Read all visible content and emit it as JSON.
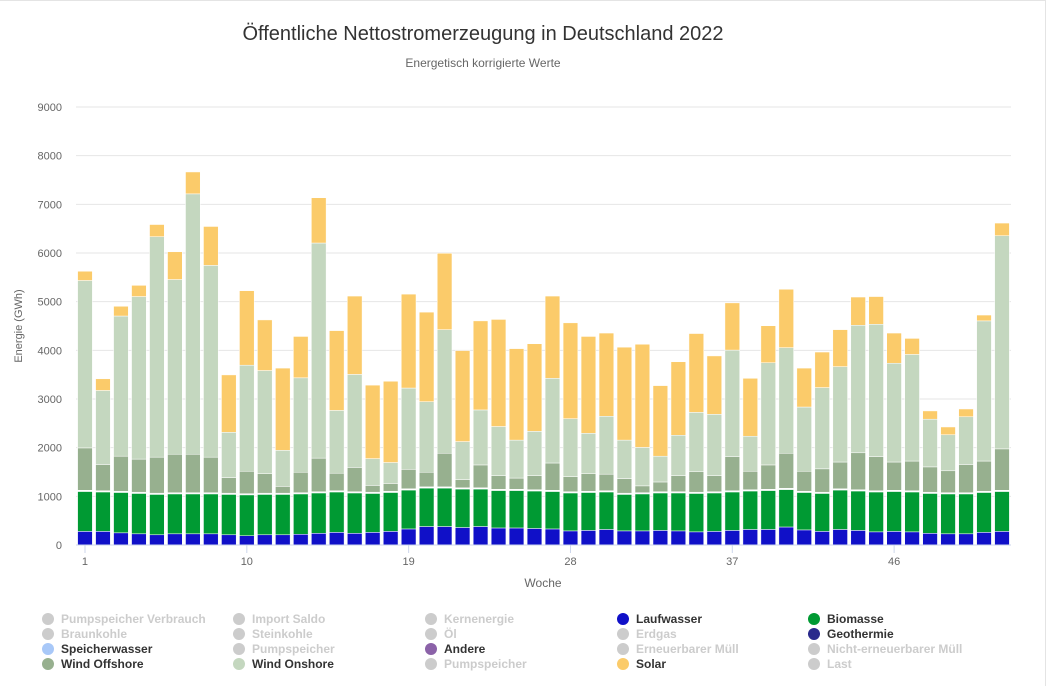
{
  "chart_data": {
    "type": "bar",
    "stacked": true,
    "title": "Öffentliche Nettostromerzeugung in Deutschland 2022",
    "subtitle": "Energetisch korrigierte Werte",
    "xlabel": "Woche",
    "ylabel": "Energie (GWh)",
    "ylim": [
      0,
      9000
    ],
    "yticks": [
      "0",
      "1000",
      "2000",
      "3000",
      "4000",
      "5000",
      "6000",
      "7000",
      "8000",
      "9000"
    ],
    "xtick_labels": [
      {
        "week": 1,
        "label": "1"
      },
      {
        "week": 10,
        "label": "10"
      },
      {
        "week": 19,
        "label": "19"
      },
      {
        "week": 28,
        "label": "28"
      },
      {
        "week": 37,
        "label": "37"
      },
      {
        "week": 46,
        "label": "46"
      }
    ],
    "weeks": [
      1,
      2,
      3,
      4,
      5,
      6,
      7,
      8,
      9,
      10,
      11,
      12,
      13,
      14,
      15,
      16,
      17,
      18,
      19,
      20,
      21,
      22,
      23,
      24,
      25,
      26,
      27,
      28,
      29,
      30,
      31,
      32,
      33,
      34,
      35,
      36,
      37,
      38,
      39,
      40,
      41,
      42,
      43,
      44,
      45,
      46,
      47,
      48,
      49,
      50,
      51,
      52
    ],
    "series": [
      {
        "name": "Laufwasser",
        "color": "#1010c8",
        "values": [
          280,
          280,
          250,
          230,
          210,
          230,
          230,
          230,
          210,
          190,
          210,
          210,
          220,
          240,
          260,
          240,
          260,
          280,
          330,
          380,
          380,
          360,
          380,
          350,
          350,
          340,
          330,
          290,
          300,
          320,
          290,
          290,
          300,
          290,
          270,
          280,
          300,
          320,
          320,
          370,
          310,
          280,
          320,
          300,
          270,
          280,
          270,
          240,
          230,
          230,
          260,
          280
        ]
      },
      {
        "name": "Biomasse",
        "color": "#009a33",
        "values": [
          820,
          810,
          830,
          830,
          830,
          820,
          820,
          820,
          830,
          840,
          830,
          830,
          830,
          830,
          830,
          830,
          800,
          800,
          800,
          790,
          790,
          790,
          770,
          770,
          770,
          770,
          770,
          780,
          780,
          770,
          750,
          760,
          770,
          780,
          790,
          790,
          790,
          790,
          800,
          770,
          770,
          780,
          810,
          810,
          820,
          820,
          820,
          820,
          820,
          820,
          820,
          820
        ]
      },
      {
        "name": "Geothermie",
        "color": "#2a2a8c",
        "values": [
          5,
          5,
          5,
          5,
          5,
          5,
          5,
          5,
          5,
          5,
          5,
          5,
          5,
          5,
          5,
          5,
          5,
          5,
          5,
          5,
          5,
          5,
          5,
          5,
          5,
          5,
          5,
          5,
          5,
          5,
          5,
          5,
          5,
          5,
          5,
          5,
          5,
          5,
          5,
          5,
          5,
          5,
          5,
          5,
          5,
          5,
          5,
          5,
          5,
          5,
          5,
          5
        ]
      },
      {
        "name": "Speicherwasser",
        "color": "#a8c8f8",
        "values": [
          10,
          10,
          10,
          10,
          10,
          10,
          10,
          10,
          10,
          10,
          10,
          10,
          10,
          10,
          10,
          10,
          10,
          10,
          10,
          10,
          10,
          10,
          10,
          10,
          10,
          10,
          10,
          10,
          10,
          10,
          10,
          10,
          10,
          10,
          10,
          10,
          10,
          10,
          10,
          10,
          10,
          10,
          10,
          10,
          10,
          10,
          10,
          10,
          10,
          10,
          10,
          10
        ]
      },
      {
        "name": "Andere",
        "color": "#8b62a8",
        "values": [
          10,
          10,
          10,
          10,
          10,
          10,
          10,
          10,
          10,
          10,
          10,
          10,
          10,
          10,
          10,
          10,
          10,
          10,
          10,
          10,
          10,
          10,
          10,
          10,
          10,
          10,
          10,
          10,
          10,
          10,
          10,
          10,
          10,
          10,
          10,
          10,
          10,
          10,
          10,
          10,
          10,
          10,
          10,
          10,
          10,
          10,
          10,
          10,
          10,
          10,
          10,
          10
        ]
      },
      {
        "name": "Wind Offshore",
        "color": "#97b08f",
        "values": [
          870,
          540,
          720,
          680,
          740,
          790,
          790,
          730,
          320,
          460,
          400,
          140,
          420,
          690,
          360,
          500,
          140,
          160,
          400,
          300,
          690,
          170,
          470,
          280,
          230,
          290,
          560,
          310,
          360,
          340,
          300,
          140,
          200,
          330,
          420,
          330,
          700,
          380,
          500,
          720,
          410,
          480,
          550,
          760,
          700,
          580,
          610,
          520,
          450,
          580,
          620,
          850
        ]
      },
      {
        "name": "Wind Onshore",
        "color": "#c4d7bf",
        "values": [
          3440,
          1520,
          2880,
          3340,
          4530,
          3590,
          5350,
          3940,
          930,
          2180,
          2120,
          740,
          1940,
          4420,
          1290,
          1910,
          550,
          430,
          1670,
          1450,
          2540,
          780,
          1130,
          1010,
          780,
          910,
          1740,
          1190,
          830,
          1190,
          790,
          790,
          530,
          830,
          1220,
          1260,
          2190,
          720,
          2100,
          2170,
          1320,
          1670,
          1960,
          2620,
          2720,
          2030,
          2190,
          980,
          740,
          980,
          2880,
          4380
        ]
      },
      {
        "name": "Solar",
        "color": "#fbcb6a",
        "values": [
          190,
          240,
          200,
          230,
          250,
          570,
          450,
          800,
          1180,
          1530,
          1040,
          1690,
          850,
          930,
          1640,
          1610,
          1510,
          1670,
          1930,
          1840,
          1570,
          1870,
          1830,
          2200,
          1880,
          1800,
          1690,
          1970,
          1990,
          1710,
          1910,
          2120,
          1450,
          1510,
          1620,
          1200,
          970,
          1190,
          760,
          1200,
          800,
          730,
          760,
          580,
          570,
          620,
          330,
          170,
          160,
          160,
          120,
          260
        ]
      }
    ]
  },
  "legend": [
    {
      "label": "Pumpspeicher Verbrauch",
      "active": false,
      "color": "#cccccc"
    },
    {
      "label": "Import Saldo",
      "active": false,
      "color": "#cccccc"
    },
    {
      "label": "Kernenergie",
      "active": false,
      "color": "#cccccc"
    },
    {
      "label": "Laufwasser",
      "active": true,
      "color": "#1010c8"
    },
    {
      "label": "Biomasse",
      "active": true,
      "color": "#009a33"
    },
    {
      "label": "Braunkohle",
      "active": false,
      "color": "#cccccc"
    },
    {
      "label": "Steinkohle",
      "active": false,
      "color": "#cccccc"
    },
    {
      "label": "Öl",
      "active": false,
      "color": "#cccccc"
    },
    {
      "label": "Erdgas",
      "active": false,
      "color": "#cccccc"
    },
    {
      "label": "Geothermie",
      "active": true,
      "color": "#2a2a8c"
    },
    {
      "label": "Speicherwasser",
      "active": true,
      "color": "#a8c8f8"
    },
    {
      "label": "Pumpspeicher",
      "active": false,
      "color": "#cccccc"
    },
    {
      "label": "Andere",
      "active": true,
      "color": "#8b62a8"
    },
    {
      "label": "Erneuerbarer Müll",
      "active": false,
      "color": "#cccccc"
    },
    {
      "label": "Nicht-erneuerbarer Müll",
      "active": false,
      "color": "#cccccc"
    },
    {
      "label": "Wind Offshore",
      "active": true,
      "color": "#97b08f"
    },
    {
      "label": "Wind Onshore",
      "active": true,
      "color": "#c4d7bf"
    },
    {
      "label": "Pumpspeicher",
      "active": false,
      "color": "#cccccc"
    },
    {
      "label": "Solar",
      "active": true,
      "color": "#fbcb6a"
    },
    {
      "label": "Last",
      "active": false,
      "color": "#cccccc"
    }
  ]
}
